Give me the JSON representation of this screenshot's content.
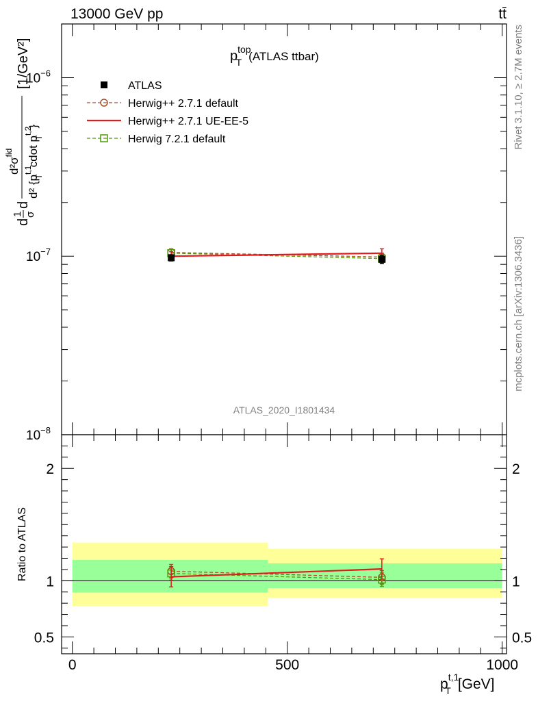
{
  "header": {
    "energy_label": "13000 GeV pp",
    "process_label": "tt̄"
  },
  "side_labels": {
    "rivet": "Rivet 3.1.10, ≥ 2.7M events",
    "mcplots": "mcplots.cern.ch [arXiv:1306.3436]"
  },
  "chart_data": [
    {
      "type": "line",
      "title_main": "p",
      "title_sup": "top",
      "title_sub": "T",
      "title_rest": "(ATLAS ttbar)",
      "watermark": "ATLAS_2020_I1801434",
      "yscale": "log",
      "ylim": [
        1e-08,
        2e-06
      ],
      "xlim": [
        -25,
        1010
      ],
      "ylabel_parts": {
        "d1": "d",
        "frac_top": "1",
        "frac_bot": "σ",
        "d2": "d",
        "num": "d²σ",
        "num_sup": "fid",
        "den": "d² {p",
        "den_sup": "t,1",
        "den_sub": "T",
        "den_rest": "cdot p",
        "den_sup2": "t,2",
        "den_sub2": "T",
        "den_close": "}",
        "unit": "[1/GeV²]"
      },
      "yticks": [
        {
          "base": "10",
          "exp": "−6",
          "value": 1e-06
        },
        {
          "base": "10",
          "exp": "−7",
          "value": 1e-07
        },
        {
          "base": "10",
          "exp": "−8",
          "value": 1e-08
        }
      ],
      "legend_position": "top-left",
      "series": [
        {
          "name": "ATLAS",
          "style": "marker-square",
          "color": "#000000",
          "x": [
            230,
            720
          ],
          "y": [
            9.8e-08,
            9.6e-08
          ],
          "yerr_low": [
            4e-09,
            5e-09
          ],
          "yerr_high": [
            4e-09,
            5e-09
          ]
        },
        {
          "name": "Herwig++ 2.7.1 default",
          "style": "circle-dashed",
          "color": "#a0522d",
          "x": [
            230,
            720
          ],
          "y": [
            1.05e-07,
            9.9e-08
          ],
          "yerr_low": [
            5e-09,
            5e-09
          ],
          "yerr_high": [
            5e-09,
            5e-09
          ]
        },
        {
          "name": "Herwig++ 2.7.1 UE-EE-5",
          "style": "solid",
          "color": "#e31a1c",
          "x": [
            230,
            720
          ],
          "y": [
            1e-07,
            1.04e-07
          ],
          "yerr_low": [
            6e-09,
            6e-09
          ],
          "yerr_high": [
            6e-09,
            6e-09
          ]
        },
        {
          "name": "Herwig 7.2.1 default",
          "style": "square-dashed",
          "color": "#4e9a06",
          "x": [
            230,
            720
          ],
          "y": [
            1.04e-07,
            9.7e-08
          ],
          "yerr_low": [
            5e-09,
            5e-09
          ],
          "yerr_high": [
            5e-09,
            5e-09
          ]
        }
      ]
    },
    {
      "type": "line",
      "ylabel": "Ratio to ATLAS",
      "xlabel_main": "p",
      "xlabel_sup": "t,1",
      "xlabel_sub": "T",
      "xlabel_unit": "[GeV]",
      "ylim": [
        0.35,
        2.3
      ],
      "xlim": [
        -25,
        1010
      ],
      "xticks": [
        {
          "label": "0",
          "value": 0
        },
        {
          "label": "500",
          "value": 500
        },
        {
          "label": "1000",
          "value": 1000
        }
      ],
      "yticks": [
        {
          "label": "2",
          "value": 2
        },
        {
          "label": "1",
          "value": 1
        },
        {
          "label": "0.5",
          "value": 0.5
        }
      ],
      "bands": [
        {
          "x": [
            0,
            455
          ],
          "outer": [
            0.775,
            1.34
          ],
          "inner": [
            0.895,
            1.185
          ],
          "outer_color": "#ffff99",
          "inner_color": "#99ff99"
        },
        {
          "x": [
            455,
            1000
          ],
          "outer": [
            0.845,
            1.285
          ],
          "inner": [
            0.935,
            1.155
          ],
          "outer_color": "#ffff99",
          "inner_color": "#99ff99"
        }
      ],
      "series": [
        {
          "name": "Herwig++ 2.7.1 default",
          "style": "circle-dashed",
          "color": "#a0522d",
          "x": [
            230,
            720
          ],
          "y": [
            1.085,
            1.03
          ],
          "yerr_low": [
            0.06,
            0.06
          ],
          "yerr_high": [
            0.06,
            0.06
          ]
        },
        {
          "name": "Herwig++ 2.7.1 UE-EE-5",
          "style": "solid",
          "color": "#e31a1c",
          "x": [
            230,
            720
          ],
          "y": [
            1.035,
            1.105
          ],
          "yerr_low": [
            0.09,
            0.09
          ],
          "yerr_high": [
            0.09,
            0.09
          ]
        },
        {
          "name": "Herwig 7.2.1 default",
          "style": "square-dashed",
          "color": "#4e9a06",
          "x": [
            230,
            720
          ],
          "y": [
            1.065,
            1.01
          ],
          "yerr_low": [
            0.06,
            0.06
          ],
          "yerr_high": [
            0.06,
            0.06
          ]
        }
      ]
    }
  ]
}
